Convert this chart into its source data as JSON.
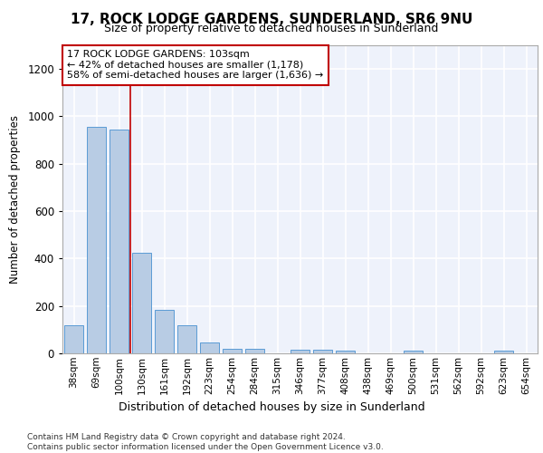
{
  "title": "17, ROCK LODGE GARDENS, SUNDERLAND, SR6 9NU",
  "subtitle": "Size of property relative to detached houses in Sunderland",
  "xlabel": "Distribution of detached houses by size in Sunderland",
  "ylabel": "Number of detached properties",
  "categories": [
    "38sqm",
    "69sqm",
    "100sqm",
    "130sqm",
    "161sqm",
    "192sqm",
    "223sqm",
    "254sqm",
    "284sqm",
    "315sqm",
    "346sqm",
    "377sqm",
    "408sqm",
    "438sqm",
    "469sqm",
    "500sqm",
    "531sqm",
    "562sqm",
    "592sqm",
    "623sqm",
    "654sqm"
  ],
  "values": [
    120,
    955,
    945,
    425,
    185,
    120,
    45,
    20,
    20,
    0,
    15,
    15,
    10,
    0,
    0,
    10,
    0,
    0,
    0,
    10,
    0
  ],
  "bar_color": "#b8cce4",
  "bar_edge_color": "#5b9bd5",
  "vline_x": 2.5,
  "annotation_line1": "17 ROCK LODGE GARDENS: 103sqm",
  "annotation_line2": "← 42% of detached houses are smaller (1,178)",
  "annotation_line3": "58% of semi-detached houses are larger (1,636) →",
  "ylim": [
    0,
    1300
  ],
  "yticks": [
    0,
    200,
    400,
    600,
    800,
    1000,
    1200
  ],
  "footnote": "Contains HM Land Registry data © Crown copyright and database right 2024.\nContains public sector information licensed under the Open Government Licence v3.0.",
  "background_color": "#eef2fb",
  "grid_color": "#ffffff",
  "fig_background": "#ffffff",
  "title_fontsize": 11,
  "subtitle_fontsize": 9
}
